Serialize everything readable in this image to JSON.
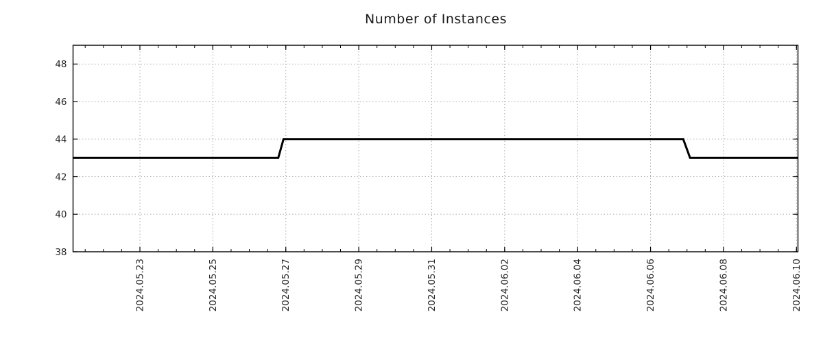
{
  "chart_data": {
    "type": "line",
    "title": "Number of Instances",
    "x_axis": {
      "start": "2024-05-21 04:00",
      "end": "2024-06-10 01:00",
      "major_ticks": [
        {
          "label": "2024.05.23",
          "date": "2024-05-23 00:00"
        },
        {
          "label": "2024.05.25",
          "date": "2024-05-25 00:00"
        },
        {
          "label": "2024.05.27",
          "date": "2024-05-27 00:00"
        },
        {
          "label": "2024.05.29",
          "date": "2024-05-29 00:00"
        },
        {
          "label": "2024.05.31",
          "date": "2024-05-31 00:00"
        },
        {
          "label": "2024.06.02",
          "date": "2024-06-02 00:00"
        },
        {
          "label": "2024.06.04",
          "date": "2024-06-04 00:00"
        },
        {
          "label": "2024.06.06",
          "date": "2024-06-06 00:00"
        },
        {
          "label": "2024.06.08",
          "date": "2024-06-08 00:00"
        },
        {
          "label": "2024.06.10",
          "date": "2024-06-10 00:00"
        }
      ],
      "minor_tick_interval_days": 0.5
    },
    "y_axis": {
      "min": 38,
      "max": 49,
      "major_ticks": [
        38,
        40,
        42,
        44,
        46,
        48
      ]
    },
    "series": [
      {
        "name": "Number of Instances",
        "color": "#000000",
        "line_width": 3,
        "points": [
          {
            "date": "2024-05-21 04:00",
            "value": 43
          },
          {
            "date": "2024-05-26 19:00",
            "value": 43
          },
          {
            "date": "2024-05-26 22:30",
            "value": 44
          },
          {
            "date": "2024-06-06 21:30",
            "value": 44
          },
          {
            "date": "2024-06-07 02:00",
            "value": 43
          },
          {
            "date": "2024-06-10 01:00",
            "value": 43
          }
        ]
      }
    ],
    "grid": {
      "show": true,
      "color": "#a8a8a8",
      "style": "dotted"
    },
    "colors": {
      "axis": "#000000",
      "text": "#262626",
      "background": "#ffffff"
    },
    "legend": {
      "show": false
    }
  }
}
